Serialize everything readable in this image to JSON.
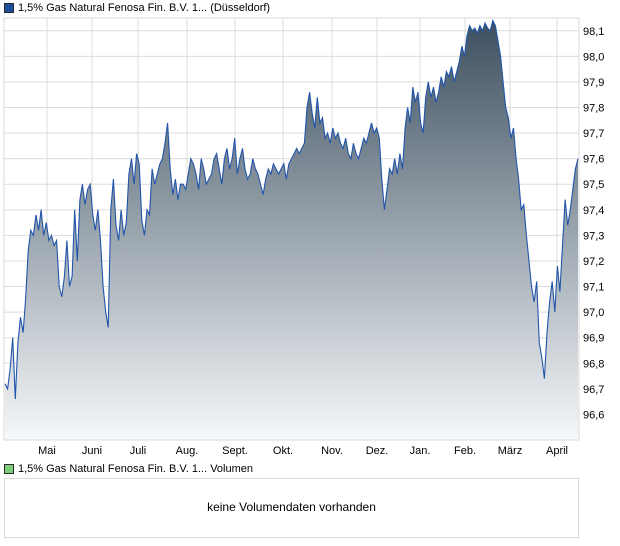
{
  "chart_data": [
    {
      "type": "area",
      "series": [
        {
          "name": "1,5% Gas Natural Fenosa Fin. B.V. 1... (Düsseldorf)",
          "values": [
            96.72,
            96.7,
            96.78,
            96.9,
            96.66,
            96.88,
            96.98,
            96.92,
            97.05,
            97.24,
            97.32,
            97.3,
            97.38,
            97.32,
            97.4,
            97.3,
            97.35,
            97.28,
            97.3,
            97.26,
            97.28,
            97.1,
            97.06,
            97.14,
            97.28,
            97.1,
            97.14,
            97.4,
            97.2,
            97.44,
            97.5,
            97.42,
            97.48,
            97.5,
            97.38,
            97.32,
            97.4,
            97.28,
            97.1,
            97.0,
            96.94,
            97.4,
            97.52,
            97.34,
            97.28,
            97.4,
            97.3,
            97.35,
            97.54,
            97.6,
            97.5,
            97.62,
            97.58,
            97.36,
            97.3,
            97.4,
            97.38,
            97.56,
            97.5,
            97.54,
            97.58,
            97.6,
            97.66,
            97.74,
            97.56,
            97.46,
            97.52,
            97.44,
            97.5,
            97.5,
            97.48,
            97.54,
            97.6,
            97.58,
            97.54,
            97.48,
            97.6,
            97.56,
            97.5,
            97.52,
            97.54,
            97.6,
            97.62,
            97.56,
            97.5,
            97.6,
            97.64,
            97.56,
            97.6,
            97.68,
            97.54,
            97.6,
            97.64,
            97.56,
            97.52,
            97.54,
            97.6,
            97.56,
            97.54,
            97.5,
            97.46,
            97.52,
            97.56,
            97.54,
            97.58,
            97.56,
            97.54,
            97.56,
            97.58,
            97.52,
            97.58,
            97.6,
            97.62,
            97.64,
            97.62,
            97.64,
            97.66,
            97.8,
            97.86,
            97.78,
            97.72,
            97.84,
            97.74,
            97.76,
            97.68,
            97.7,
            97.66,
            97.72,
            97.68,
            97.7,
            97.66,
            97.64,
            97.68,
            97.62,
            97.6,
            97.66,
            97.62,
            97.6,
            97.64,
            97.68,
            97.66,
            97.7,
            97.74,
            97.7,
            97.72,
            97.68,
            97.52,
            97.4,
            97.48,
            97.56,
            97.54,
            97.6,
            97.54,
            97.62,
            97.56,
            97.72,
            97.8,
            97.74,
            97.88,
            97.82,
            97.86,
            97.74,
            97.7,
            97.84,
            97.9,
            97.84,
            97.88,
            97.82,
            97.86,
            97.92,
            97.88,
            97.94,
            97.92,
            97.96,
            97.9,
            97.94,
            97.98,
            98.04,
            98.0,
            98.08,
            98.12,
            98.1,
            98.11,
            98.09,
            98.12,
            98.1,
            98.13,
            98.11,
            98.1,
            98.14,
            98.12,
            98.06,
            98.0,
            97.9,
            97.8,
            97.76,
            97.68,
            97.72,
            97.6,
            97.52,
            97.4,
            97.42,
            97.3,
            97.2,
            97.1,
            97.04,
            97.12,
            96.88,
            96.82,
            96.74,
            96.92,
            97.04,
            97.12,
            97.0,
            97.18,
            97.08,
            97.26,
            97.44,
            97.34,
            97.4,
            97.48,
            97.56,
            97.6
          ]
        }
      ],
      "x_labels": [
        "Mai",
        "Juni",
        "Juli",
        "Aug.",
        "Sept.",
        "Okt.",
        "Nov.",
        "Dez.",
        "Jan.",
        "Feb.",
        "März",
        "April"
      ],
      "y_ticks": [
        "98,1",
        "98,0",
        "97,9",
        "97,8",
        "97,7",
        "97,6",
        "97,5",
        "97,4",
        "97,3",
        "97,2",
        "97,1",
        "97,0",
        "96,9",
        "96,8",
        "96,7",
        "96,6"
      ],
      "ylim": [
        96.5,
        98.15
      ],
      "grid": true,
      "colors": {
        "line": "#2255aa",
        "fill_top": "#3d5060",
        "fill_bottom": "#f6f8fa",
        "grid": "#dcdcdc",
        "frame": "#d9d9d9"
      }
    },
    {
      "type": "bar",
      "series": [
        {
          "name": "1,5% Gas Natural Fenosa Fin. B.V. 1... Volumen",
          "values": []
        }
      ],
      "note": "keine Volumendaten vorhanden"
    }
  ],
  "legend_price": {
    "label": "1,5% Gas Natural Fenosa Fin. B.V. 1... (Düsseldorf)",
    "color": "#1e4d9b"
  },
  "legend_volume": {
    "label": "1,5% Gas Natural Fenosa Fin. B.V. 1... Volumen",
    "color": "#7ccc7c"
  },
  "volume_panel": {
    "message": "keine Volumendaten vorhanden"
  }
}
